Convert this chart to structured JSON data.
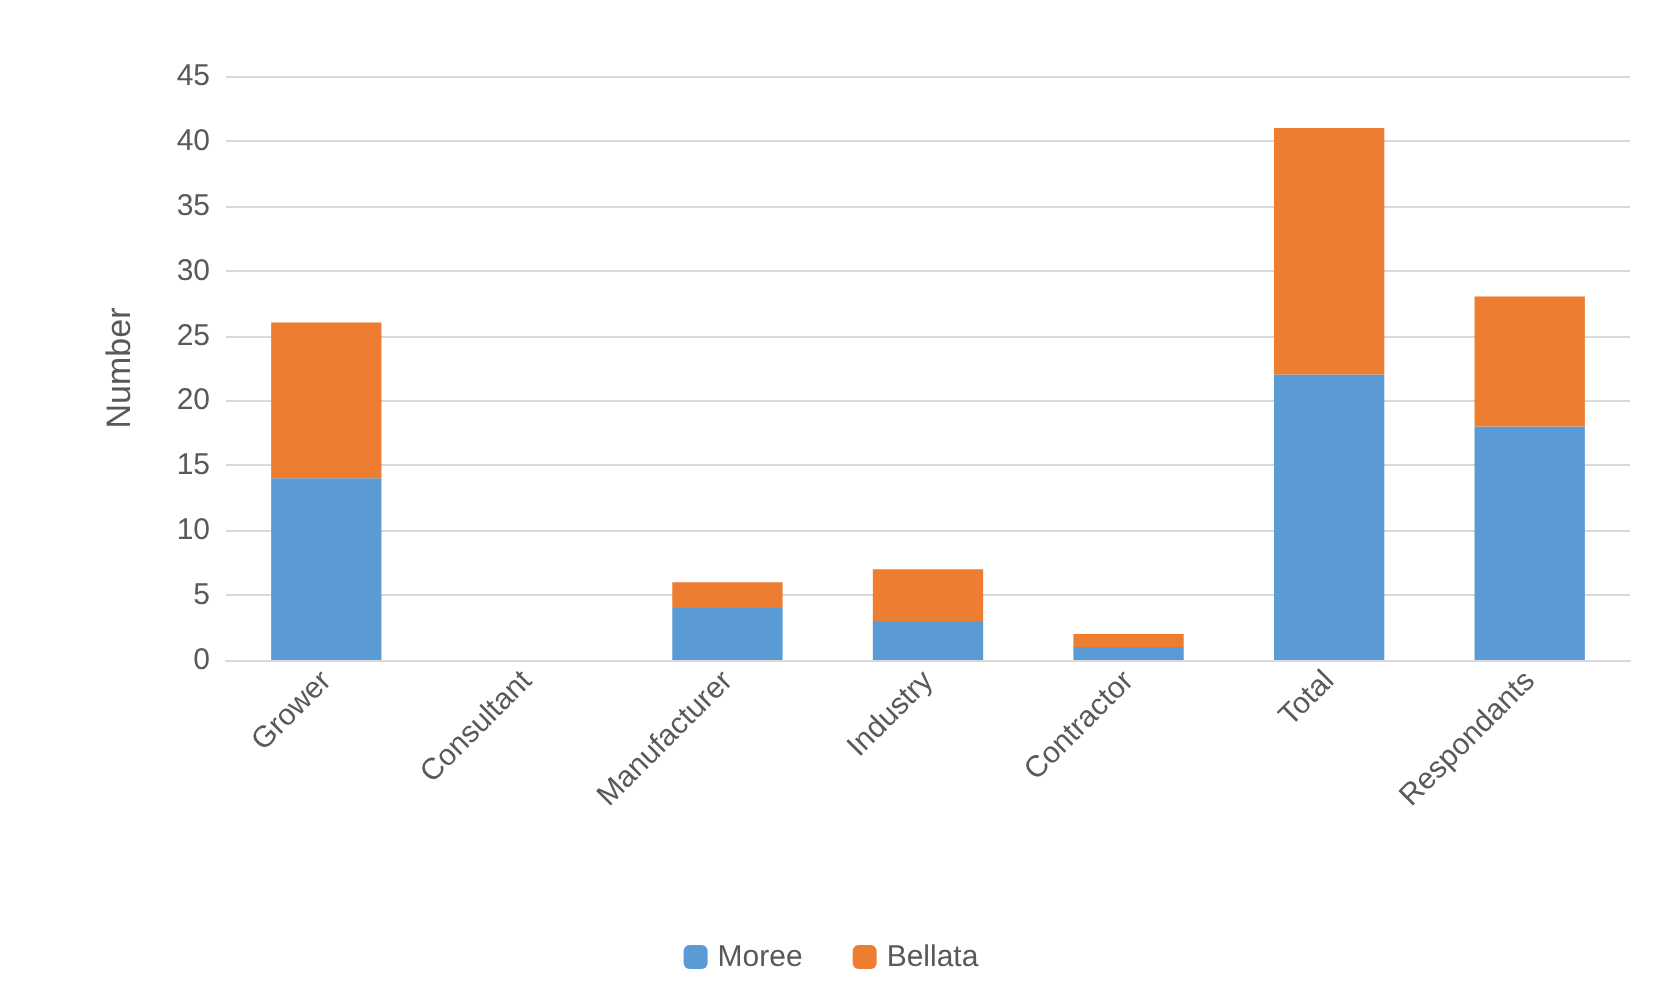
{
  "chart_data": {
    "type": "bar",
    "stacked": true,
    "ylabel": "Number",
    "categories": [
      "Grower",
      "Consultant",
      "Manufacturer",
      "Industry",
      "Contractor",
      "Total",
      "Respondants"
    ],
    "series": [
      {
        "name": "Moree",
        "color": "#5b9bd5",
        "values": [
          14,
          0,
          4,
          3,
          1,
          22,
          18
        ]
      },
      {
        "name": "Bellata",
        "color": "#ed7d31",
        "values": [
          12,
          0,
          2,
          4,
          1,
          19,
          10
        ]
      }
    ],
    "ylim": [
      0,
      45
    ],
    "yticks": [
      0,
      5,
      10,
      15,
      20,
      25,
      30,
      35,
      40,
      45
    ],
    "grid": "y",
    "legend": "bottom"
  }
}
